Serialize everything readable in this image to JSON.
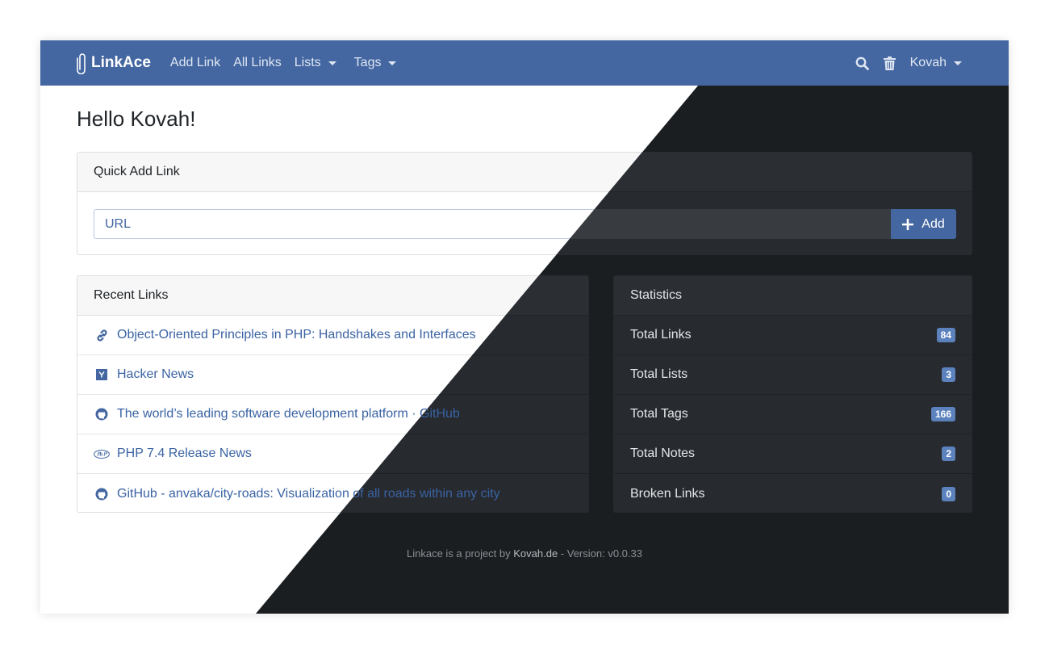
{
  "nav": {
    "brand": "LinkAce",
    "items": [
      "Add Link",
      "All Links",
      "Lists",
      "Tags"
    ],
    "user": "Kovah",
    "accent": "#4467a1"
  },
  "page_title": "Hello Kovah!",
  "quick_add": {
    "title": "Quick Add Link",
    "placeholder": "URL",
    "button": "Add"
  },
  "recent": {
    "title": "Recent Links",
    "items": [
      {
        "icon": "link-icon",
        "label": "Object-Oriented Principles in PHP: Handshakes and Interfaces"
      },
      {
        "icon": "hacker-news-icon",
        "label": "Hacker News"
      },
      {
        "icon": "github-icon",
        "label": "The world’s leading software development platform · GitHub"
      },
      {
        "icon": "php-icon",
        "label": "PHP 7.4 Release News"
      },
      {
        "icon": "github-icon",
        "label": "GitHub - anvaka/city-roads: Visualization of all roads within any city"
      }
    ]
  },
  "stats": {
    "title": "Statistics",
    "items": [
      {
        "label": "Total Links",
        "value": "84"
      },
      {
        "label": "Total Lists",
        "value": "3"
      },
      {
        "label": "Total Tags",
        "value": "166"
      },
      {
        "label": "Total Notes",
        "value": "2"
      },
      {
        "label": "Broken Links",
        "value": "0"
      }
    ]
  },
  "footer": {
    "prefix": "Linkace is a project by ",
    "link": "Kovah.de",
    "suffix": " - Version: v0.0.33"
  }
}
